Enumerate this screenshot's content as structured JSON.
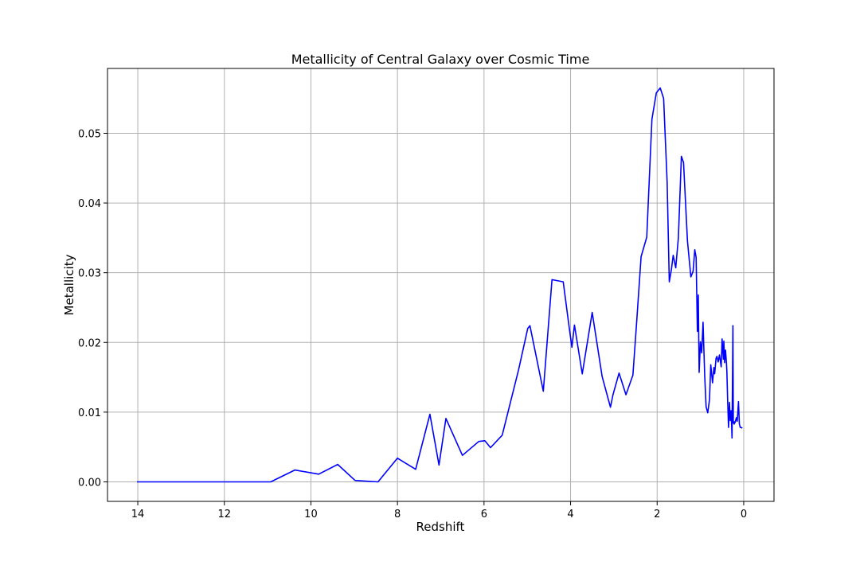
{
  "chart_data": {
    "type": "line",
    "title": "Metallicity of Central Galaxy over Cosmic Time",
    "xlabel": "Redshift",
    "ylabel": "Metallicity",
    "xlim": [
      14.7,
      -0.7
    ],
    "ylim": [
      -0.0028,
      0.0593
    ],
    "x_ticks": [
      14,
      12,
      10,
      8,
      6,
      4,
      2,
      0
    ],
    "y_ticks": [
      0.0,
      0.01,
      0.02,
      0.03,
      0.04,
      0.05
    ],
    "y_tick_labels": [
      "0.00",
      "0.01",
      "0.02",
      "0.03",
      "0.04",
      "0.05"
    ],
    "grid": true,
    "series": [
      {
        "color": "#0000ff",
        "x": [
          14.02,
          10.93,
          10.37,
          9.82,
          9.38,
          8.98,
          8.45,
          8.0,
          7.58,
          7.25,
          7.04,
          6.88,
          6.5,
          6.12,
          5.98,
          5.85,
          5.58,
          5.2,
          4.99,
          4.94,
          4.63,
          4.43,
          4.17,
          4.04,
          3.97,
          3.91,
          3.73,
          3.5,
          3.27,
          3.08,
          3.02,
          2.88,
          2.72,
          2.56,
          2.47,
          2.37,
          2.24,
          2.12,
          2.02,
          1.93,
          1.85,
          1.77,
          1.72,
          1.67,
          1.63,
          1.57,
          1.51,
          1.44,
          1.39,
          1.3,
          1.22,
          1.17,
          1.13,
          1.1,
          1.07,
          1.05,
          1.03,
          1.0,
          0.97,
          0.94,
          0.92,
          0.9,
          0.87,
          0.83,
          0.79,
          0.76,
          0.72,
          0.69,
          0.67,
          0.64,
          0.62,
          0.59,
          0.56,
          0.52,
          0.5,
          0.47,
          0.46,
          0.44,
          0.42,
          0.4,
          0.39,
          0.37,
          0.35,
          0.33,
          0.31,
          0.3,
          0.29,
          0.27,
          0.25,
          0.24,
          0.22,
          0.21,
          0.2,
          0.17,
          0.15,
          0.12,
          0.1,
          0.08,
          0.06,
          0.03
        ],
        "y": [
          0.0,
          0.0,
          0.0017,
          0.0011,
          0.0025,
          0.0002,
          0.0,
          0.0034,
          0.0018,
          0.0097,
          0.0024,
          0.0091,
          0.0038,
          0.0058,
          0.0059,
          0.0049,
          0.0067,
          0.0161,
          0.022,
          0.0224,
          0.013,
          0.029,
          0.0287,
          0.0225,
          0.0193,
          0.0225,
          0.0155,
          0.0243,
          0.0151,
          0.0107,
          0.0125,
          0.0156,
          0.0125,
          0.0153,
          0.0232,
          0.0323,
          0.0351,
          0.052,
          0.0558,
          0.0565,
          0.055,
          0.043,
          0.0287,
          0.0305,
          0.0325,
          0.0307,
          0.035,
          0.0467,
          0.0458,
          0.0346,
          0.0294,
          0.0302,
          0.0333,
          0.0322,
          0.0216,
          0.0268,
          0.0157,
          0.0201,
          0.0185,
          0.0229,
          0.0188,
          0.0152,
          0.0108,
          0.0099,
          0.0118,
          0.0168,
          0.0142,
          0.0164,
          0.0155,
          0.0177,
          0.018,
          0.0172,
          0.0182,
          0.0165,
          0.0205,
          0.0176,
          0.0202,
          0.0171,
          0.0189,
          0.0172,
          0.0159,
          0.0117,
          0.0078,
          0.0114,
          0.0088,
          0.0095,
          0.0102,
          0.0063,
          0.0224,
          0.0085,
          0.0083,
          0.0086,
          0.0085,
          0.0092,
          0.0087,
          0.0115,
          0.0083,
          0.0078,
          0.0078,
          0.0077
        ]
      }
    ]
  }
}
